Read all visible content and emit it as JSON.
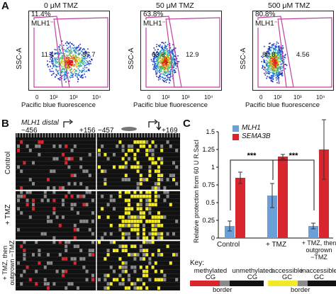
{
  "panelA": {
    "letter": "A",
    "plots": [
      {
        "title": "0 μM TMZ",
        "corner_pct": "11.4%",
        "gate_label": "MLH1⁻",
        "left_value": "11.4",
        "right_value": "85.7"
      },
      {
        "title": "50 μM TMZ",
        "corner_pct": "63.8%",
        "gate_label": "MLH1⁻",
        "left_value": "63.8",
        "right_value": "12.9"
      },
      {
        "title": "500 μM TMZ",
        "corner_pct": "80.8%",
        "gate_label": "MLH1⁻",
        "left_value": "80.8",
        "right_value": "4.56"
      }
    ],
    "ylabel": "SSC-A",
    "xlabel": "Pacific blue fluorescence",
    "x_ticks": [
      "0",
      "10²",
      "10³",
      "10⁴"
    ],
    "y_ticks": [
      "250K",
      "200K",
      "150K",
      "100K",
      "50K",
      "0"
    ]
  },
  "panelB": {
    "letter": "B",
    "gene_label": "MLH1 distal",
    "pos_left_start": "−456",
    "pos_left_end": "+156",
    "pos_right_start": "−457",
    "pos_right_end": "+169",
    "row_labels": [
      "Control",
      "+ TMZ",
      "+ TMZ, then outgrown −TMZ"
    ]
  },
  "panelC": {
    "letter": "C",
    "legend": [
      "MLH1",
      "SEMA3B"
    ],
    "ylabel": "Relative protection from 60 U R.SacI",
    "y_ticks": [
      "0",
      "0.25",
      "0.5",
      "0.75",
      "1",
      "1.25",
      "1.5"
    ],
    "categories": [
      "Control",
      "+ TMZ",
      "+ TMZ, then outgrown −TMZ"
    ],
    "significance": [
      "***",
      "***"
    ],
    "colors": {
      "MLH1": "#6a9fd8",
      "SEMA3B": "#d8262e"
    }
  },
  "key": {
    "title": "Key:",
    "methylated_label": "methylated CG",
    "unmethylated_label": "unmethylated CG",
    "accessible_label": "accessible GC",
    "inaccessible_label": "inaccessible GC",
    "border_label_1": "border",
    "border_label_2": "border",
    "colors": {
      "methylated": "#d8262e",
      "unmethylated": "#111111",
      "accessible": "#f2ea26",
      "inaccessible": "#111111",
      "border": "#8a8a8a"
    }
  },
  "chart_data": {
    "type": "bar",
    "categories": [
      "Control",
      "+ TMZ",
      "+ TMZ, then outgrown −TMZ"
    ],
    "series": [
      {
        "name": "MLH1",
        "values": [
          0.17,
          0.6,
          0.17
        ],
        "errors": [
          0.07,
          0.17,
          0.04
        ]
      },
      {
        "name": "SEMA3B",
        "values": [
          0.85,
          1.15,
          1.25
        ],
        "errors": [
          0.08,
          0.03,
          0.42
        ]
      }
    ],
    "ylabel": "Relative protection from 60 U R.SacI",
    "ylim": [
      0,
      1.5
    ]
  }
}
